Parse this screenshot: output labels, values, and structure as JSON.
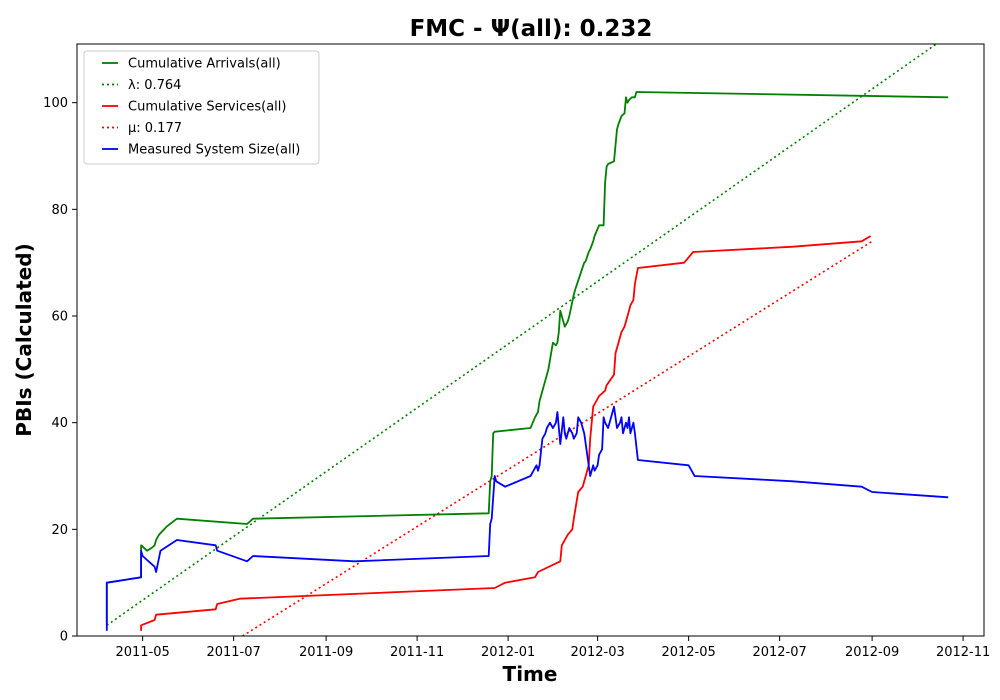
{
  "chart_data": {
    "type": "line",
    "title": "FMC -  Ψ(all): 0.232",
    "xlabel": "Time",
    "ylabel": "PBIs (Calculated)",
    "x_axis_type": "date",
    "xlim": [
      "2011-03-18",
      "2012-11-15"
    ],
    "ylim": [
      0,
      111
    ],
    "x_ticks": [
      "2011-05-01",
      "2011-07-01",
      "2011-09-01",
      "2011-11-01",
      "2012-01-01",
      "2012-03-01",
      "2012-05-01",
      "2012-07-01",
      "2012-09-01",
      "2012-11-01"
    ],
    "x_tick_labels": [
      "2011-05",
      "2011-07",
      "2011-09",
      "2011-11",
      "2012-01",
      "2012-03",
      "2012-05",
      "2012-07",
      "2012-09",
      "2012-11"
    ],
    "y_ticks": [
      0,
      20,
      40,
      60,
      80,
      100
    ],
    "y_tick_labels": [
      "0",
      "20",
      "40",
      "60",
      "80",
      "100"
    ],
    "grid": false,
    "legend_position": "top-left",
    "series": [
      {
        "name": "Cumulative Arrivals(all)",
        "style": "solid",
        "color": "#008000",
        "x": [
          "2011-04-07",
          "2011-04-07",
          "2011-04-30",
          "2011-04-30",
          "2011-05-04",
          "2011-05-07",
          "2011-05-09",
          "2011-05-10",
          "2011-05-12",
          "2011-05-17",
          "2011-05-24",
          "2011-07-10",
          "2011-07-14",
          "2011-12-19",
          "2011-12-20",
          "2011-12-21",
          "2011-12-22",
          "2011-12-23",
          "2012-01-16",
          "2012-01-19",
          "2012-01-21",
          "2012-01-22",
          "2012-01-27",
          "2012-01-28",
          "2012-01-31",
          "2012-02-02",
          "2012-02-03",
          "2012-02-04",
          "2012-02-05",
          "2012-02-08",
          "2012-02-10",
          "2012-02-11",
          "2012-02-14",
          "2012-02-15",
          "2012-02-21",
          "2012-02-22",
          "2012-02-24",
          "2012-02-25",
          "2012-02-27",
          "2012-02-28",
          "2012-03-02",
          "2012-03-05",
          "2012-03-06",
          "2012-03-07",
          "2012-03-08",
          "2012-03-12",
          "2012-03-14",
          "2012-03-15",
          "2012-03-17",
          "2012-03-19",
          "2012-03-20",
          "2012-03-21",
          "2012-03-22",
          "2012-03-24",
          "2012-03-26",
          "2012-03-27",
          "2012-10-22"
        ],
        "y": [
          2,
          10,
          11,
          17,
          16,
          16.5,
          17,
          18,
          19,
          20.5,
          22,
          21,
          22,
          23,
          29,
          30,
          38,
          38.3,
          39,
          41,
          42,
          44,
          49,
          50,
          55,
          54.5,
          55,
          57,
          61,
          58,
          59,
          60,
          64,
          65,
          70,
          70.3,
          72,
          72.5,
          74,
          75,
          77,
          77,
          85,
          88,
          88.5,
          89,
          95,
          96,
          97.5,
          98,
          101,
          100,
          100.5,
          101,
          101,
          102,
          101
        ]
      },
      {
        "name": "λ: 0.764",
        "style": "dotted",
        "color": "#008000",
        "x": [
          "2011-04-07",
          "2012-10-14"
        ],
        "y": [
          2,
          111
        ]
      },
      {
        "name": "Cumulative Services(all)",
        "style": "solid",
        "color": "#ff0000",
        "x": [
          "2011-04-30",
          "2011-04-30",
          "2011-05-09",
          "2011-05-10",
          "2011-06-19",
          "2011-06-20",
          "2011-07-05",
          "2011-12-23",
          "2011-12-30",
          "2012-01-19",
          "2012-01-21",
          "2012-02-05",
          "2012-02-06",
          "2012-02-10",
          "2012-02-13",
          "2012-02-14",
          "2012-02-17",
          "2012-02-20",
          "2012-02-24",
          "2012-02-25",
          "2012-02-27",
          "2012-03-02",
          "2012-03-06",
          "2012-03-07",
          "2012-03-12",
          "2012-03-13",
          "2012-03-17",
          "2012-03-19",
          "2012-03-22",
          "2012-03-23",
          "2012-03-25",
          "2012-03-26",
          "2012-03-28",
          "2012-04-28",
          "2012-05-04",
          "2012-07-10",
          "2012-08-25",
          "2012-08-31"
        ],
        "y": [
          1,
          2,
          3,
          4,
          5,
          6,
          7,
          9,
          10,
          11,
          12,
          14,
          17,
          19,
          20,
          22,
          27,
          28,
          32,
          37,
          43,
          45,
          46,
          47,
          49,
          53,
          57,
          58,
          61,
          62,
          63,
          66,
          69,
          70,
          72,
          73,
          74,
          75
        ]
      },
      {
        "name": "μ: 0.177",
        "style": "dotted",
        "color": "#ff0000",
        "x": [
          "2011-07-07",
          "2012-09-01"
        ],
        "y": [
          0,
          74
        ]
      },
      {
        "name": "Measured System Size(all)",
        "style": "solid",
        "color": "#0000ff",
        "x": [
          "2011-04-07",
          "2011-04-07",
          "2011-04-30",
          "2011-04-30",
          "2011-05-01",
          "2011-05-09",
          "2011-05-10",
          "2011-05-13",
          "2011-05-24",
          "2011-06-19",
          "2011-06-20",
          "2011-07-10",
          "2011-07-14",
          "2011-09-20",
          "2011-12-19",
          "2011-12-20",
          "2011-12-21",
          "2011-12-23",
          "2011-12-24",
          "2011-12-30",
          "2012-01-16",
          "2012-01-18",
          "2012-01-20",
          "2012-01-21",
          "2012-01-22",
          "2012-01-24",
          "2012-01-26",
          "2012-01-27",
          "2012-01-29",
          "2012-01-31",
          "2012-02-02",
          "2012-02-03",
          "2012-02-05",
          "2012-02-07",
          "2012-02-08",
          "2012-02-09",
          "2012-02-10",
          "2012-02-11",
          "2012-02-13",
          "2012-02-14",
          "2012-02-16",
          "2012-02-17",
          "2012-02-19",
          "2012-02-20",
          "2012-02-21",
          "2012-02-24",
          "2012-02-25",
          "2012-02-26",
          "2012-02-27",
          "2012-02-28",
          "2012-03-01",
          "2012-03-02",
          "2012-03-04",
          "2012-03-05",
          "2012-03-06",
          "2012-03-08",
          "2012-03-10",
          "2012-03-12",
          "2012-03-14",
          "2012-03-16",
          "2012-03-17",
          "2012-03-18",
          "2012-03-20",
          "2012-03-21",
          "2012-03-22",
          "2012-03-23",
          "2012-03-24",
          "2012-03-25",
          "2012-03-26",
          "2012-03-28",
          "2012-05-01",
          "2012-05-05",
          "2012-07-10",
          "2012-08-25",
          "2012-09-01",
          "2012-10-22"
        ],
        "y": [
          1,
          10,
          11,
          16,
          15,
          13,
          12,
          16,
          18,
          17,
          16,
          14,
          15,
          14,
          15,
          21,
          22,
          30,
          29,
          28,
          30,
          31,
          32,
          31,
          32,
          37,
          38,
          39,
          40,
          39,
          40,
          42,
          36,
          41,
          38,
          37,
          38,
          39,
          38,
          37,
          38,
          41,
          40,
          39,
          38,
          32,
          30,
          31,
          32,
          31,
          32,
          34,
          35,
          41,
          40,
          39,
          41,
          43,
          39,
          40,
          41,
          38,
          40,
          39,
          41,
          38,
          39,
          40,
          38,
          33,
          32,
          30,
          29,
          28,
          27,
          26
        ]
      }
    ]
  }
}
